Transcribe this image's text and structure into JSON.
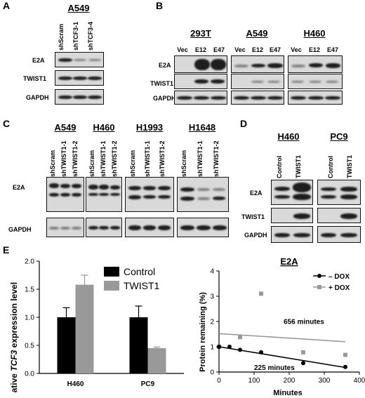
{
  "panels": {
    "A": {
      "label": "A",
      "cell": "A549",
      "lanes": [
        "shScram",
        "shTCF3-1",
        "shTCF3-4"
      ],
      "rows": [
        "E2A",
        "TWIST1",
        "GAPDH"
      ]
    },
    "B": {
      "label": "B",
      "cells": [
        "293T",
        "A549",
        "H460"
      ],
      "lanes": [
        "Vec",
        "E12",
        "E47"
      ],
      "rows": [
        "E2A",
        "TWIST1",
        "GAPDH"
      ]
    },
    "C": {
      "label": "C",
      "cells": [
        "A549",
        "H460",
        "H1993",
        "H1648"
      ],
      "lanes": [
        "shScram",
        "shTWIST1-1",
        "shTWIST1-2"
      ],
      "rows": [
        "E2A",
        "GAPDH"
      ]
    },
    "D": {
      "label": "D",
      "cells": [
        "H460",
        "PC9"
      ],
      "lanes": [
        "Control",
        "TWIST1"
      ],
      "rows": [
        "E2A",
        "TWIST1",
        "GAPDH"
      ]
    },
    "E": {
      "label": "E"
    }
  },
  "chart_data": [
    {
      "type": "bar",
      "categories": [
        "H460",
        "PC9"
      ],
      "series": [
        {
          "name": "Control",
          "values": [
            1.0,
            1.0
          ],
          "errors": [
            0.17,
            0.2
          ],
          "color": "#000000"
        },
        {
          "name": "TWIST1",
          "values": [
            1.58,
            0.45
          ],
          "errors": [
            0.17,
            0.02
          ],
          "color": "#999999"
        }
      ],
      "ylabel_pre": "Relative ",
      "ylabel_em": "TCF3",
      "ylabel_post": " expression level",
      "ylim": [
        0,
        2.0
      ],
      "yticks": [
        "0.0",
        "0.5",
        "1.0",
        "1.5",
        "2.0"
      ],
      "legend": "top-right"
    },
    {
      "type": "scatter",
      "title": "E2A",
      "xlabel": "Minutes",
      "ylabel": "Protein remaining (%)",
      "xlim": [
        0,
        400
      ],
      "ylim": [
        0,
        4
      ],
      "xticks": [
        "0",
        "100",
        "200",
        "300",
        "400"
      ],
      "yticks": [
        "0",
        "1",
        "2",
        "3",
        "4"
      ],
      "series": [
        {
          "name": "– DOX",
          "color": "#000000",
          "x": [
            0,
            30,
            60,
            120,
            240,
            360
          ],
          "y": [
            1.0,
            1.0,
            0.88,
            0.78,
            0.35,
            0.2
          ],
          "fit": [
            [
              0,
              1.0
            ],
            [
              360,
              0.18
            ]
          ],
          "annotation": "225 minutes"
        },
        {
          "name": "+ DOX",
          "color": "#999999",
          "x": [
            0,
            60,
            120,
            240,
            360
          ],
          "y": [
            1.0,
            1.38,
            3.1,
            0.78,
            0.68
          ],
          "fit": [
            [
              0,
              1.52
            ],
            [
              360,
              1.2
            ]
          ],
          "annotation": "656 minutes"
        }
      ],
      "legend": "top-right"
    }
  ]
}
